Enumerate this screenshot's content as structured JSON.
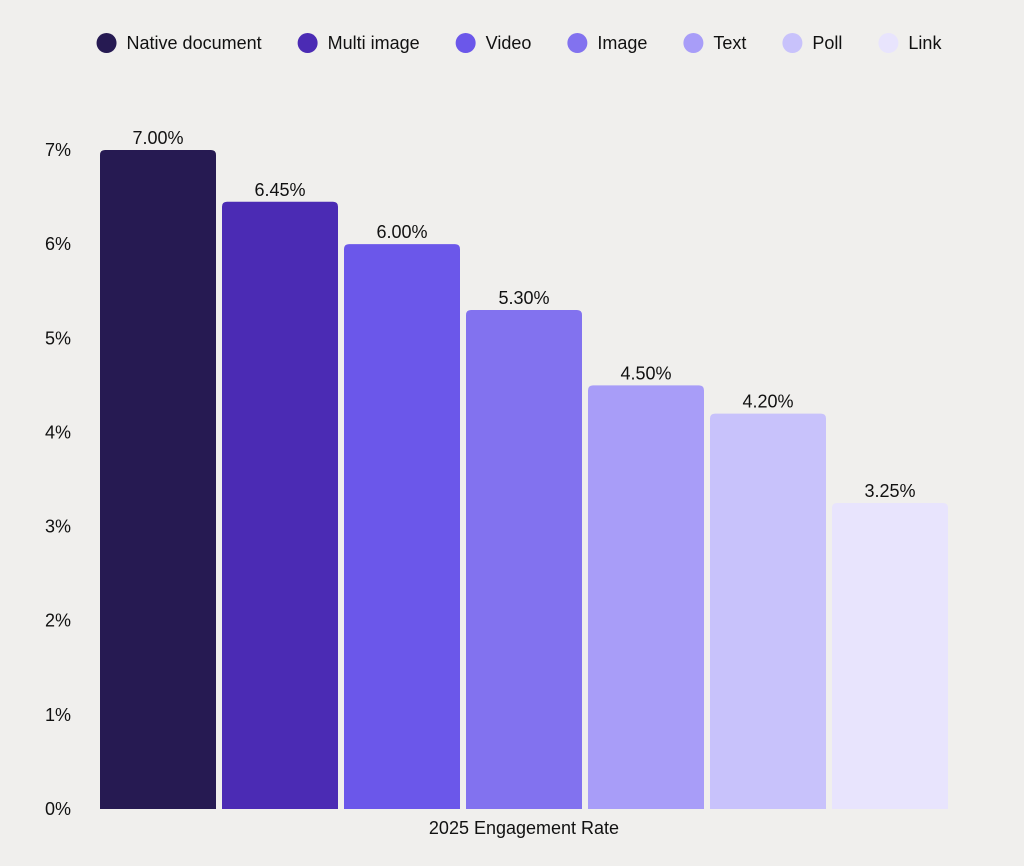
{
  "chart_data": {
    "type": "bar",
    "categories": [
      "2025 Engagement Rate"
    ],
    "xlabel": "2025 Engagement Rate",
    "ylabel": "",
    "ylim": [
      0,
      7
    ],
    "y_ticks": [
      "0%",
      "1%",
      "2%",
      "3%",
      "4%",
      "5%",
      "6%",
      "7%"
    ],
    "grid": false,
    "legend_position": "top",
    "series": [
      {
        "name": "Native document",
        "value": 7.0,
        "label": "7.00%",
        "color": "#261a52"
      },
      {
        "name": "Multi image",
        "value": 6.45,
        "label": "6.45%",
        "color": "#4b2bb4"
      },
      {
        "name": "Video",
        "value": 6.0,
        "label": "6.00%",
        "color": "#6b57ea"
      },
      {
        "name": "Image",
        "value": 5.3,
        "label": "5.30%",
        "color": "#8272ef"
      },
      {
        "name": "Text",
        "value": 4.5,
        "label": "4.50%",
        "color": "#a89df8"
      },
      {
        "name": "Poll",
        "value": 4.2,
        "label": "4.20%",
        "color": "#c8c2fb"
      },
      {
        "name": "Link",
        "value": 3.25,
        "label": "3.25%",
        "color": "#e8e4fd"
      }
    ]
  }
}
